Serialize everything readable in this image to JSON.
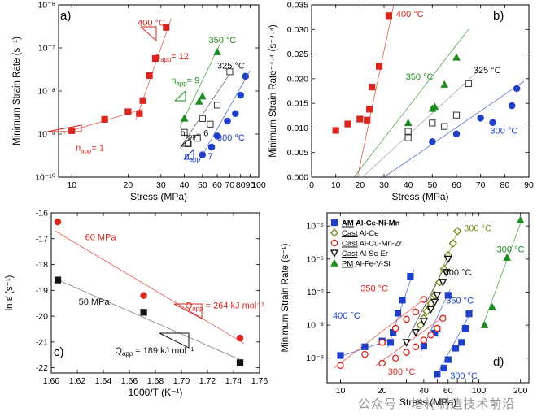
{
  "watermark": "公众号 · 增材制造技术前沿",
  "colors": {
    "red": "#d7261e",
    "green": "#1f8a1f",
    "blue": "#1f3fc8",
    "black": "#111111",
    "open": "#333333",
    "olive": "#7a8a1e",
    "gray": "#8a8a8a"
  },
  "chart_data": [
    {
      "panel": "a)",
      "type": "scatter",
      "xlabel": "Stress (MPa)",
      "ylabel": "Minimum Strain Rate (s⁻¹)",
      "xscale": "log",
      "yscale": "log",
      "xlim": [
        8.5,
        100
      ],
      "ylim": [
        1e-10,
        1e-06
      ],
      "xticks": [
        10,
        20,
        30,
        40,
        50,
        60,
        70,
        80,
        90,
        100
      ],
      "xticklabels": [
        "10",
        "20",
        "30",
        "40",
        "50",
        "60",
        "70",
        "80",
        "90",
        "100"
      ],
      "yticks": [
        1e-10,
        1e-09,
        1e-08,
        1e-07,
        1e-06
      ],
      "yticklabels": [
        "10⁻¹⁰",
        "10⁻⁹",
        "10⁻⁸",
        "10⁻⁷",
        "10⁻⁶"
      ],
      "series": [
        {
          "name": "400 °C",
          "marker": "square",
          "color": "#d7261e",
          "x": [
            10,
            15,
            20,
            23,
            24,
            26,
            28,
            32
          ],
          "y": [
            1.2e-09,
            2.2e-09,
            3.3e-09,
            3e-09,
            6e-09,
            2.3e-08,
            5.7e-08,
            3e-07
          ]
        },
        {
          "name": "350 °C",
          "marker": "triangle",
          "color": "#1f8a1f",
          "x": [
            40,
            48,
            50,
            60
          ],
          "y": [
            2.3e-09,
            5.7e-09,
            7.5e-09,
            8e-08
          ]
        },
        {
          "name": "325 °C",
          "marker": "open-square",
          "color": "#333333",
          "x": [
            40,
            42,
            47,
            50,
            55,
            60,
            70
          ],
          "y": [
            1.1e-09,
            6e-10,
            8e-10,
            2.3e-09,
            1.7e-09,
            4.7e-09,
            2.8e-08
          ]
        },
        {
          "name": "300 °C",
          "marker": "circle",
          "color": "#1f3fc8",
          "x": [
            50,
            56,
            60,
            68,
            75,
            80,
            85
          ],
          "y": [
            3.3e-10,
            5e-10,
            9e-10,
            2e-09,
            3e-09,
            8e-09,
            2.2e-08
          ]
        }
      ],
      "fits": [
        {
          "color": "#d7261e",
          "x": [
            9,
            24
          ],
          "y": [
            1.05e-09,
            3.8e-09
          ]
        },
        {
          "color": "#d7261e",
          "x": [
            22,
            34
          ],
          "y": [
            2.1e-09,
            4.8e-07
          ]
        },
        {
          "color": "#1f8a1f",
          "x": [
            38,
            62
          ],
          "y": [
            1.5e-09,
            1.2e-07
          ]
        },
        {
          "color": "#333333",
          "x": [
            38,
            72
          ],
          "y": [
            4.8e-10,
            3e-08
          ]
        },
        {
          "color": "#1f3fc8",
          "x": [
            48,
            90
          ],
          "y": [
            2.4e-10,
            3e-08
          ]
        }
      ],
      "annotations": [
        {
          "text": "400 °C",
          "color": "#d7261e",
          "x": 22.5,
          "y": 3.3e-07
        },
        {
          "text": "350 °C",
          "color": "#1f8a1f",
          "x": 54,
          "y": 1.3e-07
        },
        {
          "text": "325 °C",
          "color": "#111111",
          "x": 60,
          "y": 3.3e-08
        },
        {
          "text": "300 °C",
          "color": "#1f3fc8",
          "x": 60,
          "y": 7e-10
        },
        {
          "text": "n",
          "sub": "app",
          "tail": "= 12",
          "color": "#d7261e",
          "x": 28,
          "y": 5.4e-08
        },
        {
          "text": "n",
          "sub": "app",
          "tail": "= 9",
          "color": "#1f8a1f",
          "x": 34,
          "y": 1.5e-08
        },
        {
          "text": "n",
          "sub": "app",
          "tail": "= 6",
          "color": "#111111",
          "x": 38,
          "y": 9e-10
        },
        {
          "text": "n",
          "sub": "app",
          "tail": "= 7",
          "color": "#1f3fc8",
          "x": 40,
          "y": 2.6e-10
        },
        {
          "text": "n",
          "sub": "app",
          "tail": "= 1",
          "color": "#d7261e",
          "x": 10.5,
          "y": 4.1e-10
        }
      ]
    },
    {
      "panel": "b)",
      "type": "scatter",
      "xlabel": "Stress (MPa)",
      "ylabel": "Minimum Strain Rate⁻⁴·⁴ (s⁻⁴·⁴)",
      "xlim": [
        0,
        90
      ],
      "ylim": [
        0,
        0.035
      ],
      "xticks": [
        0,
        10,
        20,
        30,
        40,
        50,
        60,
        70,
        80,
        90
      ],
      "xticklabels": [
        "0",
        "10",
        "20",
        "30",
        "40",
        "50",
        "60",
        "70",
        "80",
        "90"
      ],
      "yticks": [
        0,
        0.005,
        0.01,
        0.015,
        0.02,
        0.025,
        0.03,
        0.035
      ],
      "yticklabels": [
        "0.000",
        "0.005",
        "0.010",
        "0.015",
        "0.020",
        "0.025",
        "0.030",
        "0.035"
      ],
      "series": [
        {
          "name": "400 °C",
          "marker": "square",
          "color": "#d7261e",
          "x": [
            10,
            15,
            20,
            23,
            24,
            25,
            28,
            32
          ],
          "y": [
            0.0095,
            0.0108,
            0.0118,
            0.0116,
            0.0138,
            0.0183,
            0.0225,
            0.0328
          ]
        },
        {
          "name": "350 °C",
          "marker": "triangle",
          "color": "#1f8a1f",
          "x": [
            40,
            50,
            51,
            55,
            60
          ],
          "y": [
            0.011,
            0.0139,
            0.0143,
            0.0188,
            0.0243
          ]
        },
        {
          "name": "325 °C",
          "marker": "open-square",
          "color": "#333333",
          "x": [
            40,
            40,
            50,
            55,
            60,
            65
          ],
          "y": [
            0.0093,
            0.008,
            0.011,
            0.0103,
            0.0126,
            0.019
          ]
        },
        {
          "name": "300 °C",
          "marker": "circle",
          "color": "#1f3fc8",
          "x": [
            50,
            60,
            70,
            75,
            83,
            85
          ],
          "y": [
            0.0072,
            0.0088,
            0.012,
            0.0111,
            0.0145,
            0.018
          ]
        }
      ],
      "fits": [
        {
          "color": "#d7261e",
          "x": [
            19,
            34
          ],
          "y": [
            0.0,
            0.035
          ]
        },
        {
          "color": "#1f8a1f",
          "x": [
            17.5,
            65
          ],
          "y": [
            0.0,
            0.03
          ]
        },
        {
          "color": "#8a8a8a",
          "x": [
            21,
            70
          ],
          "y": [
            0.0,
            0.022
          ]
        },
        {
          "color": "#1f3fc8",
          "x": [
            30,
            88
          ],
          "y": [
            0.0,
            0.0195
          ]
        }
      ],
      "annotations": [
        {
          "text": "400 °C",
          "color": "#d7261e",
          "x": 35,
          "y": 0.0325
        },
        {
          "text": "350 °C",
          "color": "#1f8a1f",
          "x": 39,
          "y": 0.0198
        },
        {
          "text": "325 °C",
          "color": "#111111",
          "x": 67,
          "y": 0.0211
        },
        {
          "text": "300 °C",
          "color": "#1f3fc8",
          "x": 74,
          "y": 0.0088
        }
      ]
    },
    {
      "panel": "c)",
      "type": "scatter",
      "xlabel": "1000/T (K⁻¹)",
      "ylabel": "ln ε̇ (s⁻¹)",
      "xlim": [
        1.6,
        1.76
      ],
      "ylim": [
        -22.2,
        -16
      ],
      "xticks": [
        1.6,
        1.62,
        1.64,
        1.66,
        1.68,
        1.7,
        1.72,
        1.74,
        1.76
      ],
      "xticklabels": [
        "1.60",
        "1.62",
        "1.64",
        "1.66",
        "1.68",
        "1.70",
        "1.72",
        "1.74",
        "1.76"
      ],
      "yticks": [
        -22,
        -21,
        -20,
        -19,
        -18,
        -17,
        -16
      ],
      "yticklabels": [
        "-22",
        "-21",
        "-20",
        "-19",
        "-18",
        "-17",
        "-16"
      ],
      "series": [
        {
          "name": "60 MPa",
          "marker": "circle",
          "color": "#d7261e",
          "x": [
            1.605,
            1.671,
            1.745
          ],
          "y": [
            -16.35,
            -19.2,
            -20.85
          ]
        },
        {
          "name": "50 MPa",
          "marker": "square",
          "color": "#111111",
          "x": [
            1.605,
            1.671,
            1.745
          ],
          "y": [
            -18.6,
            -19.85,
            -21.8
          ]
        }
      ],
      "fits": [
        {
          "color": "#d7261e",
          "x": [
            1.603,
            1.748
          ],
          "y": [
            -16.7,
            -21.05
          ]
        },
        {
          "color": "#555555",
          "x": [
            1.603,
            1.748
          ],
          "y": [
            -18.55,
            -21.75
          ]
        }
      ],
      "annotations": [
        {
          "text": "60 MPa",
          "color": "#d7261e",
          "x": 1.626,
          "y": -17.05
        },
        {
          "text": "50 MPa",
          "color": "#111111",
          "x": 1.621,
          "y": -19.55
        },
        {
          "text": "Q",
          "sub": "app",
          "tail": " = 264 kJ mol⁻¹",
          "color": "#d7261e",
          "x": 1.703,
          "y": -19.7
        },
        {
          "text": "Q",
          "sub": "app",
          "tail": " = 189 kJ mol⁻¹",
          "color": "#111111",
          "x": 1.649,
          "y": -21.45
        }
      ]
    },
    {
      "panel": "d)",
      "type": "scatter",
      "xlabel": "Stress (MPa)",
      "ylabel": "Minimum Strain Rate (s⁻¹)",
      "xscale": "log",
      "yscale": "log",
      "xlim": [
        8,
        230
      ],
      "ylim": [
        1.8e-10,
        2.5e-05
      ],
      "xticks": [
        10,
        20,
        30,
        40,
        50,
        60,
        70,
        80,
        90,
        100,
        200
      ],
      "xticklabels": [
        "10",
        "20",
        "",
        "40",
        "",
        "60",
        "",
        "",
        "",
        "100",
        "200"
      ],
      "yticks": [
        1e-09,
        1e-08,
        1e-07,
        1e-06,
        1e-05
      ],
      "yticklabels": [
        "10⁻⁹",
        "10⁻⁸",
        "10⁻⁷",
        "10⁻⁶",
        "10⁻⁵"
      ],
      "legend": {
        "position": "top-left",
        "entries": [
          {
            "prefix": "AM",
            "label": " Al-Ce-Ni-Mn",
            "marker": "square",
            "color": "#1f3fc8",
            "bold": true
          },
          {
            "prefix": "Cast",
            "label": " Al-Ce",
            "marker": "open-diamond",
            "color": "#7a8a1e",
            "bold": false
          },
          {
            "prefix": "Cast",
            "label": " Al-Cu-Mn-Zr",
            "marker": "open-circle",
            "color": "#d7261e",
            "bold": false
          },
          {
            "prefix": "Cast",
            "label": " Al-Sc-Er",
            "marker": "open-triangle-down",
            "color": "#111111",
            "bold": false
          },
          {
            "prefix": "PM",
            "label": " Al-Fe-V-Si",
            "marker": "triangle",
            "color": "#1f8a1f",
            "bold": false
          }
        ]
      },
      "series": [
        {
          "name": "AM Al-Ce-Ni-Mn 400 °C",
          "marker": "square",
          "color": "#1f3fc8",
          "x": [
            10,
            15,
            20,
            23,
            24,
            26,
            28,
            32
          ],
          "y": [
            1.2e-09,
            2.2e-09,
            3.3e-09,
            3e-09,
            6e-09,
            2.3e-08,
            5.7e-08,
            3e-07
          ]
        },
        {
          "name": "AM Al-Ce-Ni-Mn 350 °C",
          "marker": "square",
          "color": "#1f3fc8",
          "x": [
            40,
            48,
            50,
            60
          ],
          "y": [
            2.3e-09,
            5.7e-09,
            7.5e-09,
            8e-08
          ]
        },
        {
          "name": "AM Al-Ce-Ni-Mn 300 °C",
          "marker": "square",
          "color": "#1f3fc8",
          "x": [
            50,
            56,
            60,
            68,
            75,
            80,
            85
          ],
          "y": [
            3.3e-10,
            5e-10,
            9e-10,
            2e-09,
            3e-09,
            8e-09,
            2.2e-08
          ]
        },
        {
          "name": "Cast Al-Ce",
          "marker": "open-diamond",
          "color": "#7a8a1e",
          "x": [
            38,
            40,
            42,
            45,
            48,
            52,
            56,
            60,
            65,
            70
          ],
          "y": [
            1e-08,
            1.6e-08,
            2.6e-08,
            4.5e-08,
            8e-08,
            2e-07,
            5e-07,
            1.3e-06,
            3e-06,
            7e-06
          ]
        },
        {
          "name": "Cast Al-Cu-Mn-Zr 350 °C",
          "marker": "open-circle",
          "color": "#d7261e",
          "x": [
            10,
            15,
            20,
            25,
            30,
            35,
            40
          ],
          "y": [
            6e-10,
            1.3e-09,
            3e-09,
            8e-09,
            1.5e-08,
            2.5e-08,
            6e-08
          ]
        },
        {
          "name": "Cast Al-Cu-Mn-Zr 300 °C",
          "marker": "open-circle",
          "color": "#d7261e",
          "x": [
            20,
            25,
            30,
            35,
            40,
            45,
            50,
            55
          ],
          "y": [
            7e-10,
            1e-09,
            1.5e-09,
            2.2e-09,
            3.5e-09,
            5e-09,
            8e-09,
            1.6e-08
          ]
        },
        {
          "name": "Cast Al-Sc-Er",
          "marker": "open-triangle-down",
          "color": "#111111",
          "x": [
            30,
            35,
            40,
            45,
            48,
            50,
            55,
            58,
            60
          ],
          "y": [
            3e-09,
            6e-09,
            1.3e-08,
            3e-08,
            5e-08,
            8e-08,
            2e-07,
            4e-07,
            1e-06
          ]
        },
        {
          "name": "PM Al-Fe-V-Si",
          "marker": "triangle",
          "color": "#1f8a1f",
          "x": [
            110,
            125,
            160,
            200
          ],
          "y": [
            1e-08,
            3.5e-08,
            1.1e-06,
            1.5e-05
          ]
        }
      ],
      "fits": [
        {
          "color": "#1f3fc8",
          "x": [
            9.5,
            24
          ],
          "y": [
            1.05e-09,
            3.8e-09
          ]
        },
        {
          "color": "#1f3fc8",
          "x": [
            22,
            34
          ],
          "y": [
            2.1e-09,
            4.8e-07
          ]
        },
        {
          "color": "#1f3fc8",
          "x": [
            38,
            62
          ],
          "y": [
            1.5e-09,
            1.2e-07
          ]
        },
        {
          "color": "#1f3fc8",
          "x": [
            48,
            90
          ],
          "y": [
            2.4e-10,
            3e-08
          ]
        },
        {
          "color": "#7a8a1e",
          "x": [
            36,
            72
          ],
          "y": [
            7e-09,
            9e-06
          ]
        },
        {
          "color": "#d7261e",
          "x": [
            9,
            42
          ],
          "y": [
            5e-10,
            7e-08
          ]
        },
        {
          "color": "#d7261e",
          "x": [
            18,
            58
          ],
          "y": [
            6e-10,
            2e-08
          ]
        },
        {
          "color": "#111111",
          "x": [
            29,
            62
          ],
          "y": [
            2.5e-09,
            1.2e-06
          ]
        },
        {
          "color": "#1f8a1f",
          "x": [
            105,
            205
          ],
          "y": [
            8e-09,
            1.6e-05
          ]
        }
      ],
      "annotations": [
        {
          "text": "300 °C",
          "color": "#7a8a1e",
          "x": 78,
          "y": 7e-06
        },
        {
          "text": "300 °C",
          "color": "#111111",
          "x": 56,
          "y": 3.2e-07
        },
        {
          "text": "300 °C",
          "color": "#1f8a1f",
          "x": 135,
          "y": 1.6e-06
        },
        {
          "text": "350 °C",
          "color": "#d7261e",
          "x": 14,
          "y": 1.05e-07
        },
        {
          "text": "350 °C",
          "color": "#1f3fc8",
          "x": 58,
          "y": 4.5e-08
        },
        {
          "text": "400 °C",
          "color": "#1f3fc8",
          "x": 8.8,
          "y": 1.6e-08
        },
        {
          "text": "300 °C",
          "color": "#d7261e",
          "x": 22,
          "y": 3.2e-10
        },
        {
          "text": "300 °C",
          "color": "#1f3fc8",
          "x": 62,
          "y": 2.4e-10
        }
      ]
    }
  ]
}
